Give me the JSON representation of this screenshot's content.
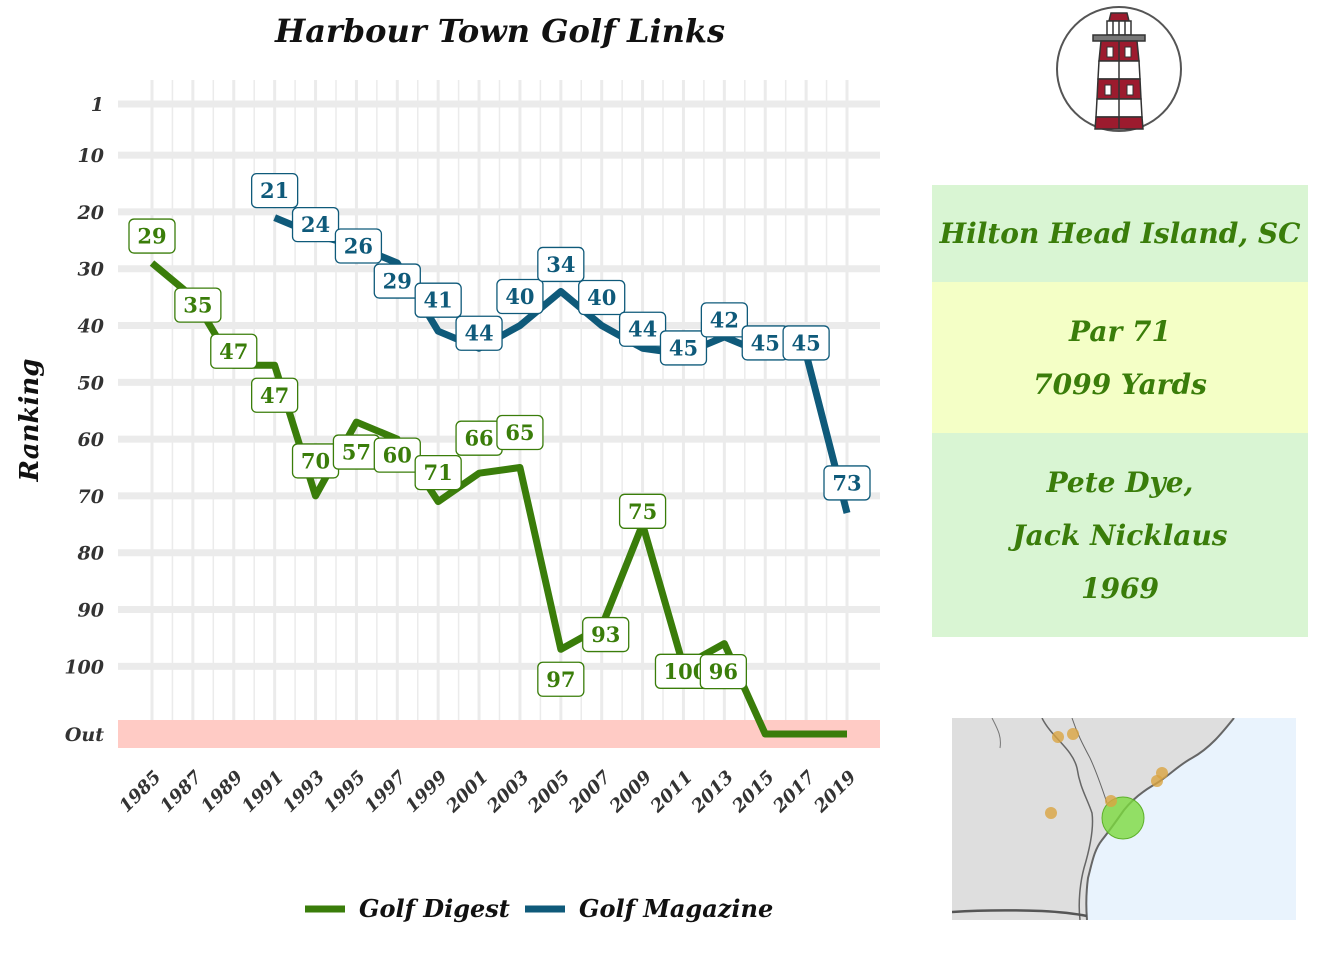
{
  "chart_data": {
    "type": "line",
    "title": "Harbour Town Golf Links",
    "ylabel": "Ranking",
    "xlabel": "",
    "x_ticks": [
      "1985",
      "1987",
      "1989",
      "1991",
      "1993",
      "1995",
      "1997",
      "1999",
      "2001",
      "2003",
      "2005",
      "2007",
      "2009",
      "2011",
      "2013",
      "2015",
      "2017",
      "2019"
    ],
    "y_ticks": [
      "1",
      "10",
      "20",
      "30",
      "40",
      "50",
      "60",
      "70",
      "80",
      "90",
      "100",
      "Out"
    ],
    "y_reversed": true,
    "out_band_label": "Out",
    "grid": true,
    "legend_position": "bottom",
    "series": [
      {
        "name": "Golf Digest",
        "color": "#3a7d0a",
        "points": [
          {
            "x": 1985,
            "y": 29,
            "label": "29"
          },
          {
            "x": 1987,
            "y": 35,
            "label": "35"
          },
          {
            "x": 1989,
            "y": 47,
            "label": "47"
          },
          {
            "x": 1991,
            "y": 47,
            "label": "47"
          },
          {
            "x": 1993,
            "y": 70,
            "label": "70"
          },
          {
            "x": 1995,
            "y": 57,
            "label": "57"
          },
          {
            "x": 1997,
            "y": 60,
            "label": "60"
          },
          {
            "x": 1999,
            "y": 71,
            "label": "71"
          },
          {
            "x": 2001,
            "y": 66,
            "label": "66"
          },
          {
            "x": 2003,
            "y": 65,
            "label": "65"
          },
          {
            "x": 2005,
            "y": 97,
            "label": "97"
          },
          {
            "x": 2007,
            "y": 93,
            "label": "93"
          },
          {
            "x": 2009,
            "y": 75,
            "label": "75"
          },
          {
            "x": 2011,
            "y": 100,
            "label": "100"
          },
          {
            "x": 2013,
            "y": 96,
            "label": "96"
          },
          {
            "x": 2015,
            "y": "Out"
          },
          {
            "x": 2017,
            "y": "Out"
          },
          {
            "x": 2019,
            "y": "Out"
          }
        ]
      },
      {
        "name": "Golf Magazine",
        "color": "#0f5a7a",
        "points": [
          {
            "x": 1991,
            "y": 21,
            "label": "21"
          },
          {
            "x": 1993,
            "y": 24,
            "label": "24"
          },
          {
            "x": 1995,
            "y": 26,
            "label": "26"
          },
          {
            "x": 1997,
            "y": 29,
            "label": "29"
          },
          {
            "x": 1999,
            "y": 41,
            "label": "41"
          },
          {
            "x": 2001,
            "y": 44,
            "label": "44"
          },
          {
            "x": 2003,
            "y": 40,
            "label": "40"
          },
          {
            "x": 2005,
            "y": 34,
            "label": "34"
          },
          {
            "x": 2007,
            "y": 40,
            "label": "40"
          },
          {
            "x": 2009,
            "y": 44,
            "label": "44"
          },
          {
            "x": 2011,
            "y": 45,
            "label": "45"
          },
          {
            "x": 2013,
            "y": 42,
            "label": "42"
          },
          {
            "x": 2015,
            "y": 45,
            "label": "45"
          },
          {
            "x": 2017,
            "y": 45,
            "label": "45"
          },
          {
            "x": 2019,
            "y": 73,
            "label": "73"
          }
        ]
      }
    ]
  },
  "info": {
    "location": "Hilton Head Island, SC",
    "par": "Par 71",
    "yards": "7099 Yards",
    "designer1": "Pete Dye,",
    "designer2": "Jack Nicklaus",
    "year": "1969"
  },
  "colors": {
    "out_band": "#ffcbc5",
    "grid": "#ebebeb",
    "info_green": "#d9f5d3",
    "info_yellow": "#f4ffc6",
    "map_land": "#dedede",
    "map_water": "#e9f3fd",
    "map_highlight": "#7cd93e",
    "map_points": "#d9a441"
  },
  "icons": {
    "logo": "lighthouse-logo",
    "map": "coastal-map"
  }
}
